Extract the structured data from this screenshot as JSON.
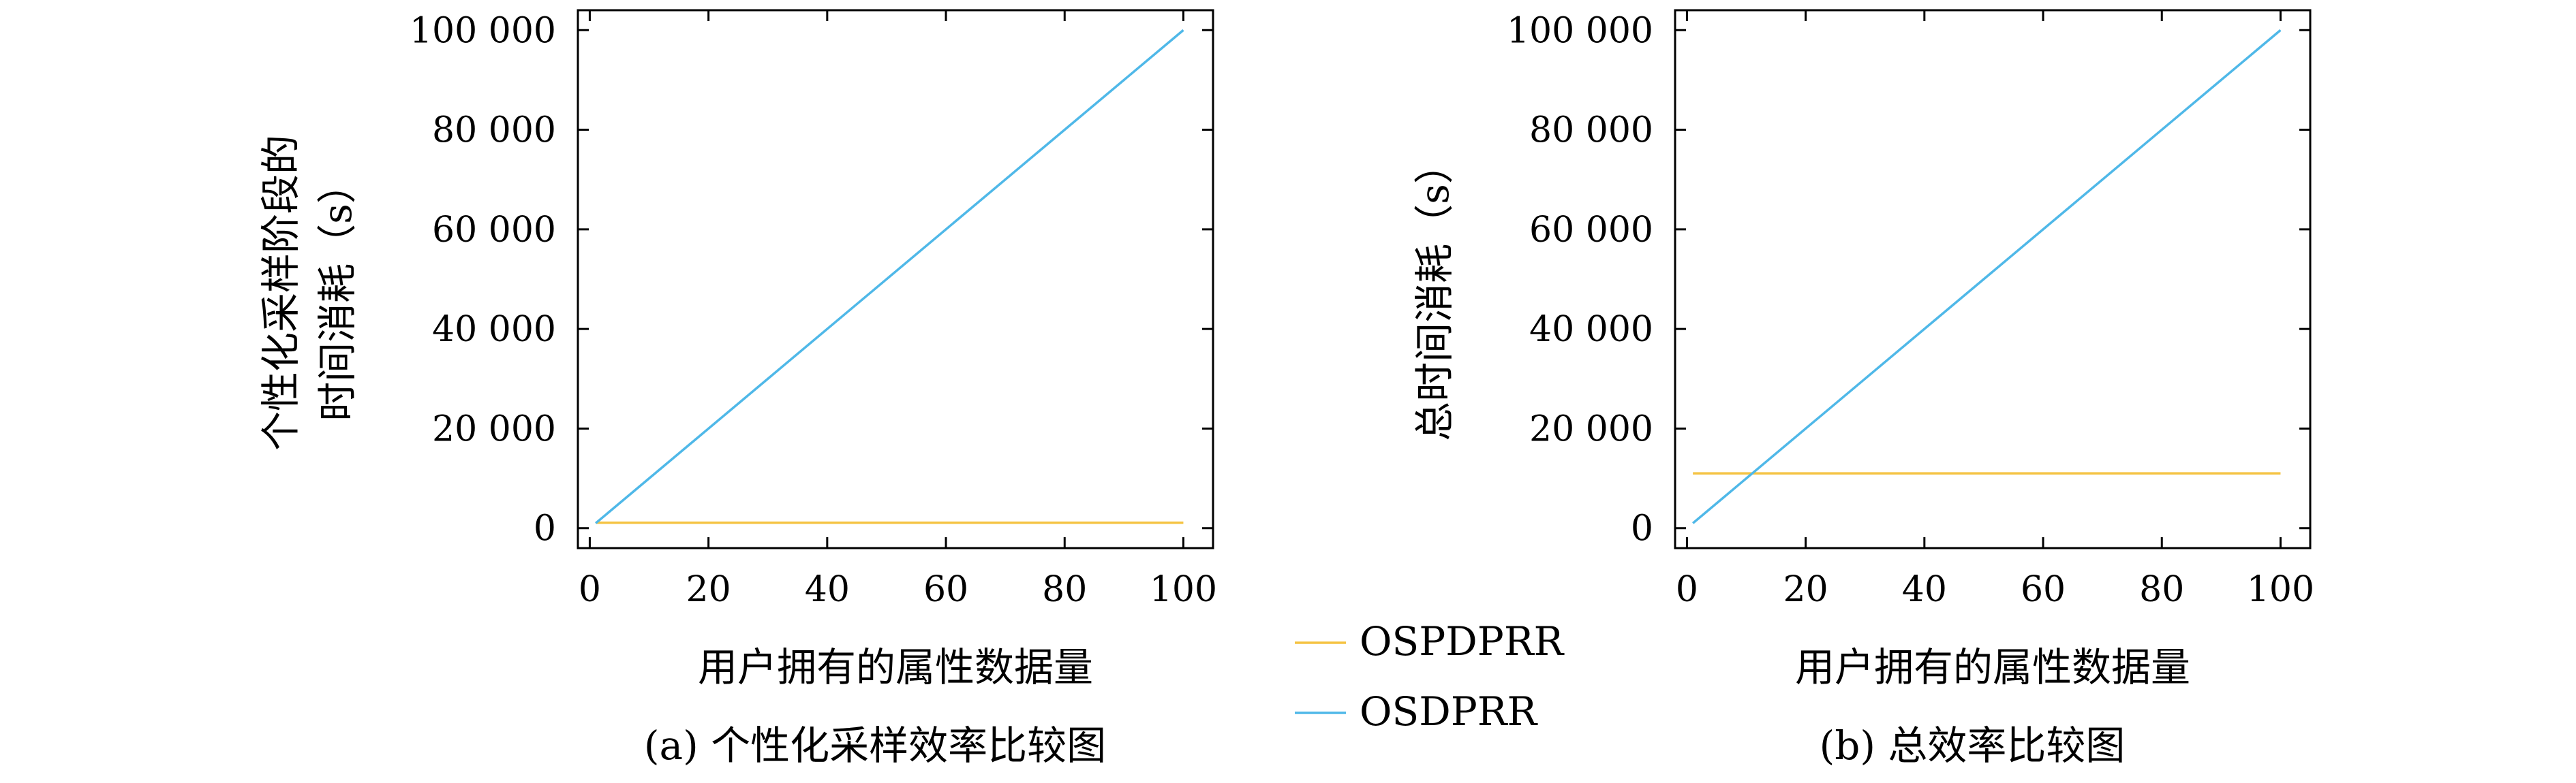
{
  "chart_data": [
    {
      "type": "line",
      "caption": "(a) 个性化采样效率比较图",
      "xlabel": "用户拥有的属性数据量",
      "ylabel": [
        "个性化采样阶段的",
        "时间消耗（s）"
      ],
      "xlim": [
        -2,
        105
      ],
      "ylim": [
        -4000,
        104000
      ],
      "xticks": [
        0,
        20,
        40,
        60,
        80,
        100
      ],
      "xtick_labels": [
        "0",
        "20",
        "40",
        "60",
        "80",
        "100"
      ],
      "yticks": [
        0,
        20000,
        40000,
        60000,
        80000,
        100000
      ],
      "ytick_labels": [
        "0",
        "20 000",
        "40 000",
        "60 000",
        "80 000",
        "100 000"
      ],
      "grid": false,
      "series": [
        {
          "name": "OSPDPRR",
          "color": "#f5c342",
          "x": [
            1,
            100
          ],
          "y": [
            1100,
            1100
          ]
        },
        {
          "name": "OSDPRR",
          "color": "#4fb8e8",
          "x": [
            1,
            100
          ],
          "y": [
            1000,
            100000
          ]
        }
      ]
    },
    {
      "type": "line",
      "caption": "(b) 总效率比较图",
      "xlabel": "用户拥有的属性数据量",
      "ylabel": [
        "总时间消耗（s）"
      ],
      "xlim": [
        -2,
        105
      ],
      "ylim": [
        -4000,
        104000
      ],
      "xticks": [
        0,
        20,
        40,
        60,
        80,
        100
      ],
      "xtick_labels": [
        "0",
        "20",
        "40",
        "60",
        "80",
        "100"
      ],
      "yticks": [
        0,
        20000,
        40000,
        60000,
        80000,
        100000
      ],
      "ytick_labels": [
        "0",
        "20 000",
        "40 000",
        "60 000",
        "80 000",
        "100 000"
      ],
      "grid": false,
      "series": [
        {
          "name": "OSPDPRR",
          "color": "#f5c342",
          "x": [
            1,
            100
          ],
          "y": [
            11000,
            11000
          ]
        },
        {
          "name": "OSDPRR",
          "color": "#4fb8e8",
          "x": [
            1,
            100
          ],
          "y": [
            1000,
            100000
          ]
        }
      ]
    }
  ],
  "legend": {
    "placement": "center-between-panels",
    "entries": [
      {
        "label": "OSPDPRR",
        "color": "#f5c342"
      },
      {
        "label": "OSDPRR",
        "color": "#4fb8e8"
      }
    ]
  }
}
